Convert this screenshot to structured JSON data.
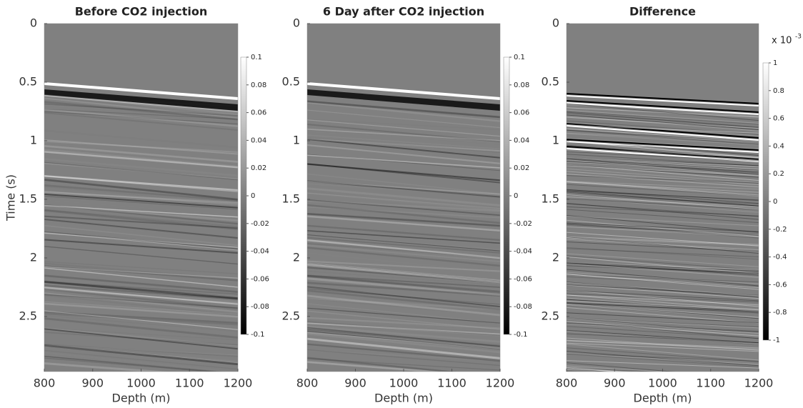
{
  "chart_data": [
    {
      "type": "image",
      "title": "Before CO2 injection",
      "x_label": "Depth (m)",
      "y_label": "Time (s)",
      "xlim": [
        800,
        1200
      ],
      "xticks": [
        800,
        900,
        1000,
        1100,
        1200
      ],
      "ylim": [
        0,
        2.97
      ],
      "yticks": [
        0,
        0.5,
        1,
        1.5,
        2,
        2.5
      ],
      "y_inverted": true,
      "colormap": "gray",
      "clim": [
        -0.1,
        0.1
      ],
      "cticks": [
        0.1,
        0.08,
        0.06,
        0.04,
        0.02,
        0,
        -0.02,
        -0.04,
        -0.06,
        -0.08,
        -0.1
      ]
    },
    {
      "type": "image",
      "title": "6 Day after CO2 injection",
      "x_label": "Depth (m)",
      "xlim": [
        800,
        1200
      ],
      "xticks": [
        800,
        900,
        1000,
        1100,
        1200
      ],
      "ylim": [
        0,
        2.97
      ],
      "yticks": [
        0,
        0.5,
        1,
        1.5,
        2,
        2.5
      ],
      "y_inverted": true,
      "colormap": "gray",
      "clim": [
        -0.1,
        0.1
      ],
      "cticks": [
        0.1,
        0.08,
        0.06,
        0.04,
        0.02,
        0,
        -0.02,
        -0.04,
        -0.06,
        -0.08,
        -0.1
      ]
    },
    {
      "type": "image",
      "title": "Difference",
      "x_label": "Depth (m)",
      "xlim": [
        800,
        1200
      ],
      "xticks": [
        800,
        900,
        1000,
        1100,
        1200
      ],
      "ylim": [
        0,
        2.97
      ],
      "yticks": [
        0,
        0.5,
        1,
        1.5,
        2,
        2.5
      ],
      "y_inverted": true,
      "colormap": "gray",
      "clim": [
        -1,
        1
      ],
      "cticks": [
        1,
        0.8,
        0.6,
        0.4,
        0.2,
        0,
        -0.2,
        -0.4,
        -0.6,
        -0.8,
        -1
      ],
      "colorbar_scale_base": "x 10",
      "colorbar_scale_exponent": "-3"
    }
  ]
}
